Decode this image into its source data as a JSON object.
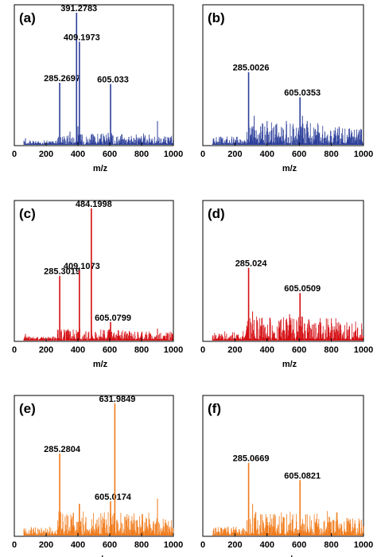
{
  "chart_data": [
    {
      "type": "line",
      "panel_label": "(a)",
      "xlabel": "m/z",
      "xlim": [
        0,
        1000
      ],
      "ylim": [
        0,
        100
      ],
      "ticks": [
        "0",
        "200",
        "400",
        "600",
        "800",
        "1000"
      ],
      "color": "#2c3f9a",
      "peaks": [
        {
          "x": 285.2697,
          "y": 47,
          "label": "285.2697"
        },
        {
          "x": 391.2783,
          "y": 100,
          "label": "391.2783"
        },
        {
          "x": 409.1973,
          "y": 78,
          "label": "409.1973"
        },
        {
          "x": 605.033,
          "y": 46,
          "label": "605.033"
        }
      ],
      "minor_peaks": [
        [
          350,
          10
        ],
        [
          400,
          14
        ],
        [
          420,
          8
        ],
        [
          590,
          9
        ],
        [
          620,
          7
        ],
        [
          720,
          6
        ],
        [
          850,
          5
        ],
        [
          900,
          18
        ],
        [
          70,
          5
        ]
      ],
      "noise_level": 5
    },
    {
      "type": "line",
      "panel_label": "(b)",
      "xlabel": "m/z",
      "xlim": [
        0,
        1000
      ],
      "ylim": [
        0,
        100
      ],
      "ticks": [
        "0",
        "200",
        "400",
        "600",
        "800",
        "1000"
      ],
      "color": "#2c3f9a",
      "peaks": [
        {
          "x": 285.0026,
          "y": 55,
          "label": "285.0026"
        },
        {
          "x": 605.0353,
          "y": 36,
          "label": "605.0353"
        }
      ],
      "minor_peaks": [
        [
          320,
          22
        ],
        [
          360,
          14
        ],
        [
          400,
          18
        ],
        [
          460,
          16
        ],
        [
          520,
          18
        ],
        [
          560,
          14
        ],
        [
          620,
          22
        ],
        [
          650,
          18
        ],
        [
          700,
          12
        ],
        [
          760,
          10
        ],
        [
          820,
          8
        ],
        [
          900,
          6
        ]
      ],
      "noise_level": 10
    },
    {
      "type": "line",
      "panel_label": "(c)",
      "xlabel": "m/z",
      "xlim": [
        0,
        1000
      ],
      "ylim": [
        0,
        100
      ],
      "ticks": [
        "0",
        "200",
        "400",
        "600",
        "800",
        "1000"
      ],
      "color": "#d40d12",
      "peaks": [
        {
          "x": 285.3019,
          "y": 49,
          "label": "285.3019"
        },
        {
          "x": 409.1073,
          "y": 53,
          "label": "409.1073"
        },
        {
          "x": 484.1998,
          "y": 100,
          "label": "484.1998"
        },
        {
          "x": 605.0799,
          "y": 14,
          "label": "605.0799"
        }
      ],
      "minor_peaks": [
        [
          330,
          8
        ],
        [
          450,
          7
        ],
        [
          560,
          8
        ],
        [
          700,
          7
        ],
        [
          800,
          6
        ],
        [
          900,
          9
        ],
        [
          70,
          5
        ]
      ],
      "noise_level": 5
    },
    {
      "type": "line",
      "panel_label": "(d)",
      "xlabel": "m/z",
      "xlim": [
        0,
        1000
      ],
      "ylim": [
        0,
        100
      ],
      "ticks": [
        "0",
        "200",
        "400",
        "600",
        "800",
        "1000"
      ],
      "color": "#d40d12",
      "peaks": [
        {
          "x": 285.024,
          "y": 55,
          "label": "285.024"
        },
        {
          "x": 605.0509,
          "y": 36,
          "label": "605.0509"
        }
      ],
      "minor_peaks": [
        [
          310,
          22
        ],
        [
          340,
          14
        ],
        [
          380,
          12
        ],
        [
          420,
          16
        ],
        [
          480,
          14
        ],
        [
          540,
          20
        ],
        [
          620,
          18
        ],
        [
          660,
          16
        ],
        [
          720,
          12
        ],
        [
          780,
          10
        ],
        [
          860,
          8
        ],
        [
          940,
          6
        ]
      ],
      "noise_level": 11
    },
    {
      "type": "line",
      "panel_label": "(e)",
      "xlabel": "m/z",
      "xlim": [
        0,
        1000
      ],
      "ylim": [
        0,
        100
      ],
      "ticks": [
        "0",
        "200",
        "400",
        "600",
        "800",
        "1000"
      ],
      "color": "#f07a1a",
      "peaks": [
        {
          "x": 285.2804,
          "y": 62,
          "label": "285.2804"
        },
        {
          "x": 409.0,
          "y": 24,
          "label": ""
        },
        {
          "x": 605.0174,
          "y": 26,
          "label": "605.0174"
        },
        {
          "x": 631.9849,
          "y": 100,
          "label": "631.9849"
        }
      ],
      "minor_peaks": [
        [
          330,
          16
        ],
        [
          360,
          12
        ],
        [
          450,
          14
        ],
        [
          520,
          12
        ],
        [
          560,
          10
        ],
        [
          700,
          14
        ],
        [
          750,
          10
        ],
        [
          820,
          10
        ],
        [
          900,
          28
        ],
        [
          950,
          12
        ]
      ],
      "noise_level": 11
    },
    {
      "type": "line",
      "panel_label": "(f)",
      "xlabel": "m/z",
      "xlim": [
        0,
        1000
      ],
      "ylim": [
        0,
        100
      ],
      "ticks": [
        "0",
        "200",
        "400",
        "600",
        "800",
        "1000"
      ],
      "color": "#f07a1a",
      "peaks": [
        {
          "x": 285.0669,
          "y": 55,
          "label": "285.0669"
        },
        {
          "x": 605.0821,
          "y": 42,
          "label": "605.0821"
        }
      ],
      "minor_peaks": [
        [
          310,
          24
        ],
        [
          330,
          18
        ],
        [
          360,
          16
        ],
        [
          400,
          14
        ],
        [
          440,
          16
        ],
        [
          500,
          14
        ],
        [
          560,
          16
        ],
        [
          640,
          16
        ],
        [
          700,
          10
        ],
        [
          780,
          10
        ],
        [
          860,
          8
        ],
        [
          950,
          6
        ]
      ],
      "noise_level": 11
    }
  ]
}
